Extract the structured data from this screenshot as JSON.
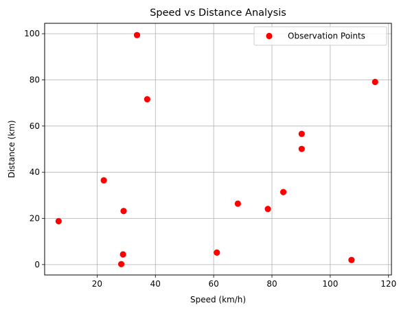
{
  "chart_data": {
    "type": "scatter",
    "title": "Speed vs Distance Analysis",
    "xlabel": "Speed (km/h)",
    "ylabel": "Distance (km)",
    "xlim": [
      2,
      121
    ],
    "ylim": [
      -4.5,
      104.5
    ],
    "xticks": [
      20,
      40,
      60,
      80,
      100,
      120
    ],
    "yticks": [
      0,
      20,
      40,
      60,
      80,
      100
    ],
    "grid": true,
    "legend_position": "top-right",
    "series": [
      {
        "name": "Observation Points",
        "color": "#ff0000",
        "marker": "circle",
        "points": [
          {
            "x": 6.8,
            "y": 18.8
          },
          {
            "x": 22.3,
            "y": 36.5
          },
          {
            "x": 28.3,
            "y": 0.2
          },
          {
            "x": 28.9,
            "y": 4.4
          },
          {
            "x": 29.1,
            "y": 23.2
          },
          {
            "x": 33.7,
            "y": 99.4
          },
          {
            "x": 37.2,
            "y": 71.6
          },
          {
            "x": 61.1,
            "y": 5.2
          },
          {
            "x": 68.3,
            "y": 26.4
          },
          {
            "x": 78.6,
            "y": 24.1
          },
          {
            "x": 83.9,
            "y": 31.4
          },
          {
            "x": 90.2,
            "y": 56.6
          },
          {
            "x": 90.2,
            "y": 50.1
          },
          {
            "x": 107.3,
            "y": 2.0
          },
          {
            "x": 115.4,
            "y": 79.1
          }
        ]
      }
    ]
  }
}
